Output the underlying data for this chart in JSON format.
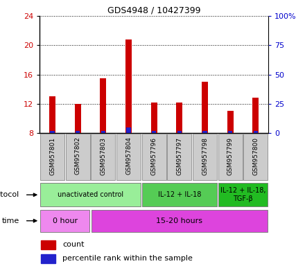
{
  "title": "GDS4948 / 10427399",
  "samples": [
    "GSM957801",
    "GSM957802",
    "GSM957803",
    "GSM957804",
    "GSM957796",
    "GSM957797",
    "GSM957798",
    "GSM957799",
    "GSM957800"
  ],
  "count_values": [
    13.0,
    12.0,
    15.5,
    20.8,
    12.2,
    12.2,
    15.0,
    11.0,
    12.8
  ],
  "y_min": 8,
  "y_max": 24,
  "y_ticks": [
    8,
    12,
    16,
    20,
    24
  ],
  "y2_ticks": [
    0,
    25,
    50,
    75,
    100
  ],
  "y2_tick_labels": [
    "0",
    "25",
    "50",
    "75",
    "100%"
  ],
  "bar_color": "#cc0000",
  "percentile_color": "#2222cc",
  "percentile_heights": [
    0.3,
    0.3,
    0.3,
    0.8,
    0.3,
    0.3,
    0.3,
    0.3,
    0.3
  ],
  "protocol_groups": [
    {
      "label": "unactivated control",
      "start": 0,
      "end": 4,
      "color": "#99ee99"
    },
    {
      "label": "IL-12 + IL-18",
      "start": 4,
      "end": 7,
      "color": "#55cc55"
    },
    {
      "label": "IL-12 + IL-18,\nTGF-β",
      "start": 7,
      "end": 9,
      "color": "#22bb22"
    }
  ],
  "time_groups": [
    {
      "label": "0 hour",
      "start": 0,
      "end": 2,
      "color": "#ee88ee"
    },
    {
      "label": "15-20 hours",
      "start": 2,
      "end": 9,
      "color": "#dd44dd"
    }
  ],
  "protocol_label": "protocol",
  "time_label": "time",
  "legend_count": "count",
  "legend_pct": "percentile rank within the sample",
  "bar_col": "#cc0000",
  "y_left_color": "#cc0000",
  "y_right_color": "#0000cc",
  "sample_box_color": "#cccccc",
  "sample_box_edge": "#888888"
}
